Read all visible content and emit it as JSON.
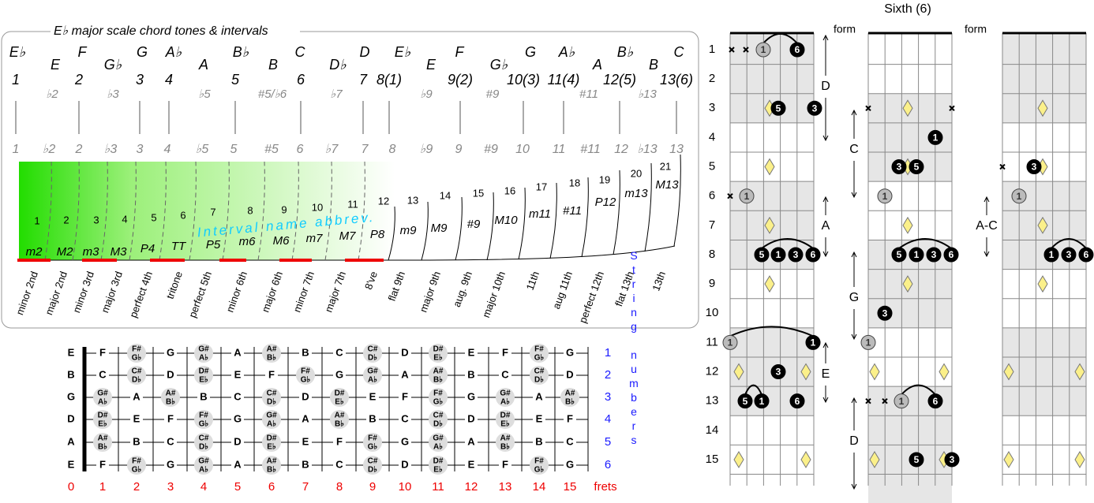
{
  "title": "E♭ major scale chord tones & intervals",
  "notes": [
    "E♭",
    "E",
    "F",
    "G♭",
    "G",
    "A♭",
    "A",
    "B♭",
    "B",
    "C",
    "D♭",
    "D",
    "E♭",
    "E",
    "F",
    "G♭",
    "G",
    "A♭",
    "A",
    "B♭",
    "B",
    "C"
  ],
  "degrees": [
    "1",
    "♭2",
    "2",
    "♭3",
    "3",
    "4",
    "♭5",
    "5",
    "#5/♭6",
    "6",
    "♭7",
    "7",
    "8(1)",
    "♭9",
    "9(2)",
    "#9",
    "10(3)",
    "11(4)",
    "#11",
    "12(5)",
    "♭13",
    "13(6)"
  ],
  "degrees_short": [
    "1",
    "♭2",
    "2",
    "♭3",
    "3",
    "4",
    "♭5",
    "5",
    "#5",
    "6",
    "♭7",
    "7",
    "8",
    "♭9",
    "9",
    "#9",
    "10",
    "11",
    "#11",
    "12",
    "♭13",
    "13"
  ],
  "semitones": [
    1,
    2,
    3,
    4,
    5,
    6,
    7,
    8,
    9,
    10,
    11,
    12,
    13,
    14,
    15,
    16,
    17,
    18,
    19,
    20,
    21
  ],
  "abbreviations": [
    "m2",
    "M2",
    "m3",
    "M3",
    "P4",
    "TT",
    "P5",
    "m6",
    "M6",
    "m7",
    "M7",
    "P8",
    "m9",
    "M9",
    "#9",
    "M10",
    "m11",
    "#11",
    "P12",
    "m13",
    "M13"
  ],
  "abbrev_caption": "Interval name abbrev.",
  "interval_names": [
    "minor 2nd",
    "major 2nd",
    "minor 3rd",
    "major 3rd",
    "perfect 4th",
    "tritone",
    "perfect 5th",
    "minor 6th",
    "major 6th",
    "minor 7th",
    "major 7th",
    "8've",
    "flat 9th",
    "major 9th",
    "aug. 9th",
    "major 10th",
    "11th",
    "aug 11th",
    "perfect 12th",
    "flat 13th",
    "13th"
  ],
  "fretboard": {
    "strings": [
      [
        "E",
        "F",
        [
          "F#",
          "G♭"
        ],
        "G",
        [
          "G#",
          "A♭"
        ],
        "A",
        [
          "A#",
          "B♭"
        ],
        "B",
        "C",
        [
          "C#",
          "D♭"
        ],
        "D",
        [
          "D#",
          "E♭"
        ],
        "E",
        "F",
        [
          "F#",
          "G♭"
        ],
        "G"
      ],
      [
        "B",
        "C",
        [
          "C#",
          "D♭"
        ],
        "D",
        [
          "D#",
          "E♭"
        ],
        "E",
        "F",
        [
          "F#",
          "G♭"
        ],
        "G",
        [
          "G#",
          "A♭"
        ],
        "A",
        [
          "A#",
          "B♭"
        ],
        "B",
        "C",
        [
          "C#",
          "D♭"
        ],
        "D"
      ],
      [
        "G",
        [
          "G#",
          "A♭"
        ],
        "A",
        [
          "A#",
          "B♭"
        ],
        "B",
        "C",
        [
          "C#",
          "D♭"
        ],
        "D",
        [
          "D#",
          "E♭"
        ],
        "E",
        "F",
        [
          "F#",
          "G♭"
        ],
        "G",
        [
          "G#",
          "A♭"
        ],
        "A",
        [
          "A#",
          "B♭"
        ]
      ],
      [
        "D",
        [
          "D#",
          "E♭"
        ],
        "E",
        "F",
        [
          "F#",
          "G♭"
        ],
        "G",
        [
          "G#",
          "A♭"
        ],
        "A",
        [
          "A#",
          "B♭"
        ],
        "B",
        "C",
        [
          "C#",
          "D♭"
        ],
        "D",
        [
          "D#",
          "E♭"
        ],
        "E",
        "F"
      ],
      [
        "A",
        [
          "A#",
          "B♭"
        ],
        "B",
        "C",
        [
          "C#",
          "D♭"
        ],
        "D",
        [
          "D#",
          "E♭"
        ],
        "E",
        "F",
        [
          "F#",
          "G♭"
        ],
        "G",
        [
          "G#",
          "A♭"
        ],
        "A",
        [
          "A#",
          "B♭"
        ],
        "B",
        "C"
      ],
      [
        "E",
        "F",
        [
          "F#",
          "G♭"
        ],
        "G",
        [
          "G#",
          "A♭"
        ],
        "A",
        [
          "A#",
          "B♭"
        ],
        "B",
        "C",
        [
          "C#",
          "D♭"
        ],
        "D",
        [
          "D#",
          "E♭"
        ],
        "E",
        "F",
        [
          "F#",
          "G♭"
        ],
        "G"
      ]
    ],
    "string_numbers": [
      1,
      2,
      3,
      4,
      5,
      6
    ],
    "string_caption": "String numbers",
    "fret_numbers": [
      0,
      1,
      2,
      3,
      4,
      5,
      6,
      7,
      8,
      9,
      10,
      11,
      12,
      13,
      14,
      15
    ],
    "fret_caption": "frets"
  },
  "forms": {
    "title": "Sixth (6)",
    "form_labels": [
      "form",
      "form"
    ],
    "fret_numbers": [
      1,
      2,
      3,
      4,
      5,
      6,
      7,
      8,
      9,
      10,
      11,
      12,
      13,
      14,
      15
    ],
    "diagrams": [
      {
        "dots": [
          "1",
          "6",
          "5",
          "3",
          "1",
          "5",
          "1",
          "3",
          "6",
          "1",
          "1",
          "3",
          "5",
          "1",
          "6"
        ],
        "ranges": [
          "D",
          "A",
          "E"
        ]
      },
      {
        "dots": [
          "1",
          "3",
          "5",
          "1",
          "5",
          "1",
          "3",
          "6",
          "3",
          "1",
          "1",
          "6",
          "5",
          "3"
        ],
        "ranges": [
          "C",
          "G",
          "D"
        ]
      },
      {
        "dots": [
          "3",
          "1",
          "1",
          "3",
          "6"
        ],
        "ranges": [
          "A-C"
        ]
      }
    ]
  }
}
